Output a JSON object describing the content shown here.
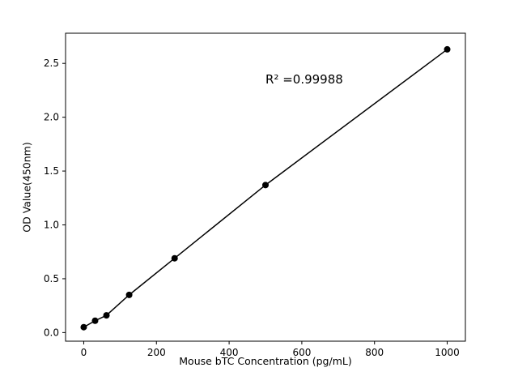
{
  "chart_data": {
    "type": "scatter",
    "title": "",
    "xlabel": "Mouse bTC Concentration (pg/mL)",
    "ylabel": "OD Value(450nm)",
    "annotation": "R² =0.99988",
    "x": [
      0,
      31.25,
      62.5,
      125,
      250,
      500,
      1000
    ],
    "y": [
      0.05,
      0.11,
      0.16,
      0.35,
      0.69,
      1.37,
      2.63
    ],
    "xlim": [
      -50,
      1050
    ],
    "ylim": [
      -0.08,
      2.78
    ],
    "xticks": [
      0,
      200,
      400,
      600,
      800,
      1000
    ],
    "yticks": [
      0.0,
      0.5,
      1.0,
      1.5,
      2.0,
      2.5
    ],
    "line_color": "#000000",
    "marker_color": "#000000",
    "marker_radius": 4,
    "line_width": 1.5,
    "grid": false,
    "legend": null
  }
}
